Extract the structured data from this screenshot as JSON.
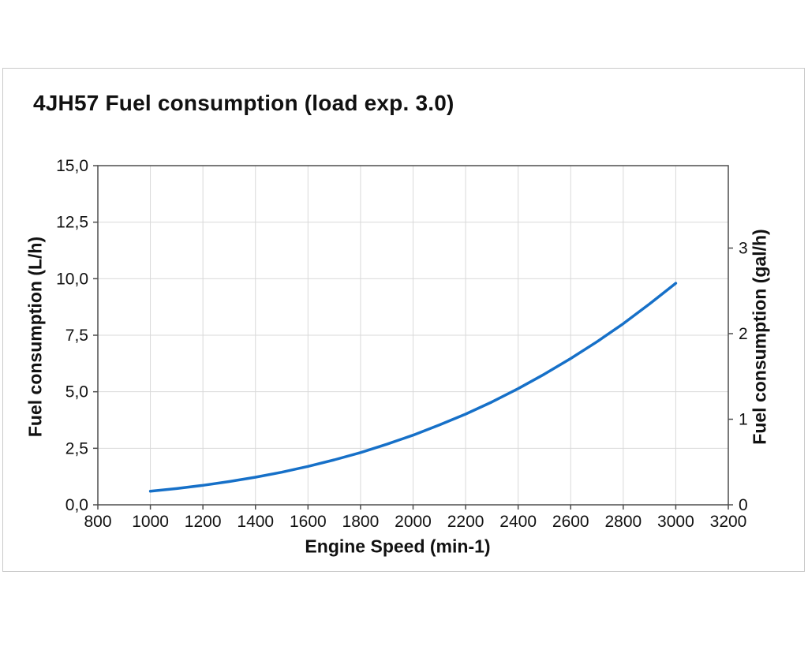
{
  "panel": {
    "border_color": "#c9c9c9",
    "background": "#ffffff"
  },
  "chart_data": {
    "type": "line",
    "title": "4JH57 Fuel consumption (load exp. 3.0)",
    "xlabel": "Engine Speed (min-1)",
    "ylabel_left": "Fuel consumption (L/h)",
    "ylabel_right": "Fuel consumption (gal/h)",
    "xlim": [
      800,
      3200
    ],
    "ylim_left": [
      0,
      15
    ],
    "liters_per_gallon": 3.785,
    "grid": true,
    "legend": "none",
    "x_tick_values": [
      800,
      1000,
      1200,
      1400,
      1600,
      1800,
      2000,
      2200,
      2400,
      2600,
      2800,
      3000,
      3200
    ],
    "x_tick_labels": [
      "800",
      "1000",
      "1200",
      "1400",
      "1600",
      "1800",
      "2000",
      "2200",
      "2400",
      "2600",
      "2800",
      "3000",
      "3200"
    ],
    "y_left_tick_values": [
      0,
      2.5,
      5,
      7.5,
      10,
      12.5,
      15
    ],
    "y_left_tick_labels": [
      "0,0",
      "2,5",
      "5,0",
      "7,5",
      "10,0",
      "12,5",
      "15,0"
    ],
    "y_right_tick_values": [
      0,
      1,
      2,
      3
    ],
    "y_right_tick_labels": [
      "0",
      "1",
      "2",
      "3"
    ],
    "series": [
      {
        "name": "Fuel consumption",
        "color": "#1670c8",
        "line_width": 3.5,
        "x": [
          1000,
          1100,
          1200,
          1300,
          1400,
          1500,
          1600,
          1700,
          1800,
          1900,
          2000,
          2100,
          2200,
          2300,
          2400,
          2500,
          2600,
          2700,
          2800,
          2900,
          3000
        ],
        "y": [
          0.6,
          0.72,
          0.86,
          1.03,
          1.22,
          1.44,
          1.7,
          1.99,
          2.31,
          2.68,
          3.08,
          3.53,
          4.01,
          4.55,
          5.14,
          5.78,
          6.47,
          7.21,
          8.01,
          8.88,
          9.8
        ]
      }
    ],
    "colors": {
      "frame": "#4d4d4d",
      "grid": "#d9d9d9",
      "text": "#111111"
    }
  }
}
